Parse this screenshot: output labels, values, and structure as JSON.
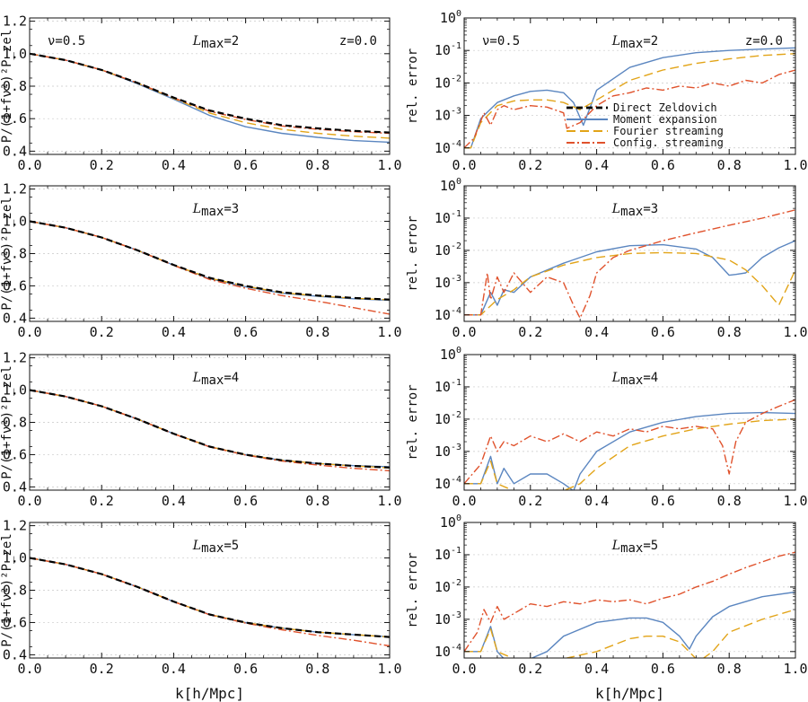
{
  "figure": {
    "xlabel": "k[h/Mpc]",
    "ylabel_left": "P/(1+fν²)²P_zel",
    "ylabel_right": "rel. error",
    "nu_label": "ν=0.5",
    "z_label": "z=0.0"
  },
  "colors": {
    "direct": "#000000",
    "moment": "#5b86c0",
    "fourier": "#e2a418",
    "config": "#e0522c"
  },
  "legend": [
    {
      "key": "direct",
      "label": "Direct Zeldovich",
      "dash": "7,4"
    },
    {
      "key": "moment",
      "label": "Moment expansion",
      "dash": ""
    },
    {
      "key": "fourier",
      "label": "Fourier streaming",
      "dash": "10,5"
    },
    {
      "key": "config",
      "label": "Config. streaming",
      "dash": "9,3,2,3"
    }
  ],
  "chart_data": [
    {
      "type": "line",
      "panel": "ratio",
      "lmax_label": "2",
      "xlim": [
        0,
        1
      ],
      "ylim": [
        0.38,
        1.22
      ],
      "xticks": [
        0.0,
        0.2,
        0.4,
        0.6,
        0.8,
        1.0
      ],
      "yticks": [
        0.4,
        0.6,
        0.8,
        1.0,
        1.2
      ],
      "x": [
        0.0,
        0.1,
        0.2,
        0.3,
        0.4,
        0.5,
        0.6,
        0.7,
        0.8,
        0.9,
        1.0
      ],
      "series": [
        {
          "key": "direct",
          "values": [
            1.0,
            0.96,
            0.9,
            0.82,
            0.73,
            0.65,
            0.6,
            0.56,
            0.54,
            0.525,
            0.515
          ]
        },
        {
          "key": "moment",
          "values": [
            1.0,
            0.96,
            0.9,
            0.815,
            0.72,
            0.62,
            0.55,
            0.51,
            0.485,
            0.465,
            0.455
          ]
        },
        {
          "key": "fourier",
          "values": [
            1.0,
            0.96,
            0.9,
            0.818,
            0.725,
            0.635,
            0.575,
            0.535,
            0.51,
            0.492,
            0.48
          ]
        },
        {
          "key": "config",
          "values": [
            1.0,
            0.96,
            0.9,
            0.82,
            0.728,
            0.645,
            0.595,
            0.555,
            0.535,
            0.52,
            0.51
          ]
        }
      ]
    },
    {
      "type": "line",
      "panel": "error",
      "lmax_label": "2",
      "yscale": "log",
      "xlim": [
        0,
        1
      ],
      "ylim_exp": [
        -4.2,
        0
      ],
      "xticks": [
        0.0,
        0.2,
        0.4,
        0.6,
        0.8,
        1.0
      ],
      "ytick_exps": [
        -4,
        -3,
        -2,
        -1,
        0
      ],
      "series": [
        {
          "key": "moment",
          "x": [
            0.0,
            0.02,
            0.05,
            0.1,
            0.15,
            0.2,
            0.25,
            0.3,
            0.33,
            0.36,
            0.4,
            0.5,
            0.6,
            0.7,
            0.8,
            0.9,
            1.0
          ],
          "values": [
            0.0001,
            0.0001,
            0.0008,
            0.0025,
            0.004,
            0.0055,
            0.006,
            0.005,
            0.0025,
            0.0005,
            0.006,
            0.03,
            0.06,
            0.085,
            0.1,
            0.11,
            0.12
          ]
        },
        {
          "key": "fourier",
          "x": [
            0.0,
            0.02,
            0.05,
            0.1,
            0.15,
            0.2,
            0.25,
            0.3,
            0.35,
            0.4,
            0.5,
            0.6,
            0.7,
            0.8,
            0.9,
            1.0
          ],
          "values": [
            0.0001,
            0.0001,
            0.0006,
            0.002,
            0.0028,
            0.003,
            0.003,
            0.0025,
            0.0015,
            0.003,
            0.012,
            0.025,
            0.04,
            0.055,
            0.07,
            0.08
          ]
        },
        {
          "key": "config",
          "x": [
            0.0,
            0.03,
            0.06,
            0.08,
            0.1,
            0.12,
            0.15,
            0.2,
            0.25,
            0.3,
            0.31,
            0.35,
            0.4,
            0.45,
            0.5,
            0.55,
            0.6,
            0.65,
            0.7,
            0.75,
            0.8,
            0.85,
            0.9,
            0.95,
            1.0
          ],
          "values": [
            0.0001,
            0.0002,
            0.0012,
            0.0005,
            0.0015,
            0.002,
            0.0015,
            0.002,
            0.0018,
            0.0012,
            0.0004,
            0.0006,
            0.002,
            0.004,
            0.005,
            0.007,
            0.006,
            0.008,
            0.007,
            0.01,
            0.008,
            0.012,
            0.01,
            0.018,
            0.025
          ]
        },
        {
          "key": "direct",
          "x": [
            0.31,
            0.42
          ],
          "values": [
            0.0028,
            0.0028
          ],
          "legend_only": true
        }
      ]
    },
    {
      "type": "line",
      "panel": "ratio",
      "lmax_label": "3",
      "xlim": [
        0,
        1
      ],
      "ylim": [
        0.38,
        1.22
      ],
      "xticks": [
        0.0,
        0.2,
        0.4,
        0.6,
        0.8,
        1.0
      ],
      "yticks": [
        0.4,
        0.6,
        0.8,
        1.0,
        1.2
      ],
      "x": [
        0.0,
        0.1,
        0.2,
        0.3,
        0.4,
        0.5,
        0.6,
        0.7,
        0.8,
        0.9,
        1.0
      ],
      "series": [
        {
          "key": "direct",
          "values": [
            1.0,
            0.96,
            0.9,
            0.82,
            0.73,
            0.65,
            0.6,
            0.56,
            0.54,
            0.525,
            0.515
          ]
        },
        {
          "key": "moment",
          "values": [
            1.0,
            0.96,
            0.9,
            0.82,
            0.728,
            0.645,
            0.595,
            0.555,
            0.535,
            0.52,
            0.51
          ]
        },
        {
          "key": "fourier",
          "values": [
            1.0,
            0.96,
            0.9,
            0.82,
            0.729,
            0.648,
            0.598,
            0.558,
            0.538,
            0.523,
            0.513
          ]
        },
        {
          "key": "config",
          "values": [
            1.0,
            0.96,
            0.9,
            0.82,
            0.727,
            0.64,
            0.585,
            0.54,
            0.505,
            0.465,
            0.425
          ]
        }
      ]
    },
    {
      "type": "line",
      "panel": "error",
      "lmax_label": "3",
      "yscale": "log",
      "xlim": [
        0,
        1
      ],
      "ylim_exp": [
        -4.2,
        0
      ],
      "xticks": [
        0.0,
        0.2,
        0.4,
        0.6,
        0.8,
        1.0
      ],
      "ytick_exps": [
        -4,
        -3,
        -2,
        -1,
        0
      ],
      "series": [
        {
          "key": "moment",
          "x": [
            0.0,
            0.05,
            0.08,
            0.1,
            0.12,
            0.15,
            0.2,
            0.3,
            0.4,
            0.5,
            0.6,
            0.7,
            0.75,
            0.8,
            0.82,
            0.85,
            0.9,
            0.95,
            1.0
          ],
          "values": [
            0.0001,
            0.0001,
            0.0005,
            0.0002,
            0.0006,
            0.0005,
            0.0015,
            0.004,
            0.009,
            0.014,
            0.015,
            0.011,
            0.006,
            0.0017,
            0.0018,
            0.002,
            0.006,
            0.012,
            0.02
          ]
        },
        {
          "key": "fourier",
          "x": [
            0.0,
            0.05,
            0.1,
            0.15,
            0.2,
            0.3,
            0.4,
            0.5,
            0.6,
            0.7,
            0.8,
            0.85,
            0.9,
            0.95,
            1.0
          ],
          "values": [
            0.0001,
            0.0001,
            0.0003,
            0.0006,
            0.0015,
            0.0035,
            0.006,
            0.008,
            0.0085,
            0.008,
            0.005,
            0.0025,
            0.0008,
            0.0002,
            0.0025
          ]
        },
        {
          "key": "config",
          "x": [
            0.0,
            0.05,
            0.07,
            0.08,
            0.1,
            0.12,
            0.15,
            0.2,
            0.25,
            0.3,
            0.33,
            0.35,
            0.38,
            0.4,
            0.45,
            0.5,
            0.6,
            0.7,
            0.8,
            0.9,
            1.0
          ],
          "values": [
            0.0001,
            0.0001,
            0.002,
            0.0003,
            0.0015,
            0.0005,
            0.002,
            0.0005,
            0.0015,
            0.001,
            0.0002,
            8e-05,
            0.0004,
            0.002,
            0.006,
            0.01,
            0.02,
            0.035,
            0.06,
            0.1,
            0.18
          ]
        }
      ]
    },
    {
      "type": "line",
      "panel": "ratio",
      "lmax_label": "4",
      "xlim": [
        0,
        1
      ],
      "ylim": [
        0.38,
        1.22
      ],
      "xticks": [
        0.0,
        0.2,
        0.4,
        0.6,
        0.8,
        1.0
      ],
      "yticks": [
        0.4,
        0.6,
        0.8,
        1.0,
        1.2
      ],
      "x": [
        0.0,
        0.1,
        0.2,
        0.3,
        0.4,
        0.5,
        0.6,
        0.7,
        0.8,
        0.9,
        1.0
      ],
      "series": [
        {
          "key": "direct",
          "values": [
            1.0,
            0.96,
            0.9,
            0.82,
            0.73,
            0.65,
            0.6,
            0.565,
            0.545,
            0.53,
            0.52
          ]
        },
        {
          "key": "moment",
          "values": [
            1.0,
            0.96,
            0.9,
            0.82,
            0.73,
            0.65,
            0.6,
            0.565,
            0.545,
            0.532,
            0.525
          ]
        },
        {
          "key": "fourier",
          "values": [
            1.0,
            0.96,
            0.9,
            0.82,
            0.73,
            0.65,
            0.6,
            0.565,
            0.545,
            0.53,
            0.518
          ]
        },
        {
          "key": "config",
          "values": [
            1.0,
            0.96,
            0.9,
            0.82,
            0.729,
            0.648,
            0.597,
            0.56,
            0.535,
            0.515,
            0.5
          ]
        }
      ]
    },
    {
      "type": "line",
      "panel": "error",
      "lmax_label": "4",
      "yscale": "log",
      "xlim": [
        0,
        1
      ],
      "ylim_exp": [
        -4.2,
        0
      ],
      "xticks": [
        0.0,
        0.2,
        0.4,
        0.6,
        0.8,
        1.0
      ],
      "ytick_exps": [
        -4,
        -3,
        -2,
        -1,
        0
      ],
      "series": [
        {
          "key": "moment",
          "x": [
            0.0,
            0.05,
            0.08,
            0.1,
            0.12,
            0.15,
            0.2,
            0.25,
            0.3,
            0.33,
            0.35,
            0.4,
            0.5,
            0.6,
            0.7,
            0.8,
            0.9,
            1.0
          ],
          "values": [
            0.0001,
            0.0001,
            0.0007,
            0.0001,
            0.0003,
            0.0001,
            0.0002,
            0.0002,
            0.0001,
            6e-05,
            0.0002,
            0.001,
            0.004,
            0.008,
            0.012,
            0.015,
            0.016,
            0.015
          ]
        },
        {
          "key": "fourier",
          "x": [
            0.0,
            0.05,
            0.08,
            0.1,
            0.15,
            0.25,
            0.3,
            0.35,
            0.4,
            0.5,
            0.6,
            0.7,
            0.8,
            0.9,
            1.0
          ],
          "values": [
            0.0001,
            0.0001,
            0.0005,
            0.0001,
            6e-05,
            6e-05,
            6e-05,
            0.0001,
            0.0003,
            0.0015,
            0.003,
            0.005,
            0.007,
            0.009,
            0.01
          ]
        },
        {
          "key": "config",
          "x": [
            0.0,
            0.05,
            0.08,
            0.1,
            0.12,
            0.15,
            0.2,
            0.25,
            0.3,
            0.35,
            0.4,
            0.45,
            0.5,
            0.55,
            0.6,
            0.65,
            0.7,
            0.75,
            0.78,
            0.8,
            0.82,
            0.85,
            0.9,
            0.95,
            1.0
          ],
          "values": [
            0.0001,
            0.0004,
            0.003,
            0.001,
            0.002,
            0.0015,
            0.003,
            0.002,
            0.0035,
            0.002,
            0.004,
            0.003,
            0.005,
            0.004,
            0.006,
            0.005,
            0.006,
            0.005,
            0.0015,
            0.0002,
            0.002,
            0.008,
            0.015,
            0.025,
            0.04
          ]
        }
      ]
    },
    {
      "type": "line",
      "panel": "ratio",
      "lmax_label": "5",
      "xlim": [
        0,
        1
      ],
      "ylim": [
        0.38,
        1.22
      ],
      "xticks": [
        0.0,
        0.2,
        0.4,
        0.6,
        0.8,
        1.0
      ],
      "yticks": [
        0.4,
        0.6,
        0.8,
        1.0,
        1.2
      ],
      "x": [
        0.0,
        0.1,
        0.2,
        0.3,
        0.4,
        0.5,
        0.6,
        0.7,
        0.8,
        0.9,
        1.0
      ],
      "series": [
        {
          "key": "direct",
          "values": [
            1.0,
            0.96,
            0.9,
            0.82,
            0.73,
            0.65,
            0.6,
            0.565,
            0.54,
            0.525,
            0.51
          ]
        },
        {
          "key": "moment",
          "values": [
            1.0,
            0.96,
            0.9,
            0.82,
            0.73,
            0.65,
            0.6,
            0.565,
            0.54,
            0.524,
            0.512
          ]
        },
        {
          "key": "fourier",
          "values": [
            1.0,
            0.96,
            0.9,
            0.82,
            0.73,
            0.65,
            0.6,
            0.565,
            0.54,
            0.525,
            0.51
          ]
        },
        {
          "key": "config",
          "values": [
            1.0,
            0.96,
            0.9,
            0.82,
            0.729,
            0.648,
            0.596,
            0.555,
            0.52,
            0.49,
            0.455
          ]
        }
      ]
    },
    {
      "type": "line",
      "panel": "error",
      "lmax_label": "5",
      "yscale": "log",
      "xlim": [
        0,
        1
      ],
      "ylim_exp": [
        -4.2,
        0
      ],
      "xticks": [
        0.0,
        0.2,
        0.4,
        0.6,
        0.8,
        1.0
      ],
      "ytick_exps": [
        -4,
        -3,
        -2,
        -1,
        0
      ],
      "series": [
        {
          "key": "moment",
          "x": [
            0.0,
            0.05,
            0.08,
            0.1,
            0.12,
            0.2,
            0.25,
            0.3,
            0.4,
            0.5,
            0.55,
            0.6,
            0.65,
            0.68,
            0.7,
            0.75,
            0.8,
            0.9,
            1.0
          ],
          "values": [
            0.0001,
            0.0001,
            0.0006,
            0.0001,
            6e-05,
            6e-05,
            0.0001,
            0.0003,
            0.0008,
            0.0011,
            0.0011,
            0.0008,
            0.0003,
            0.00012,
            0.0003,
            0.0012,
            0.0025,
            0.005,
            0.007
          ]
        },
        {
          "key": "fourier",
          "x": [
            0.0,
            0.05,
            0.08,
            0.1,
            0.15,
            0.3,
            0.4,
            0.5,
            0.55,
            0.6,
            0.65,
            0.7,
            0.72,
            0.75,
            0.8,
            0.9,
            1.0
          ],
          "values": [
            0.0001,
            0.0001,
            0.0005,
            0.0001,
            6e-05,
            6e-05,
            0.0001,
            0.00025,
            0.0003,
            0.0003,
            0.0002,
            6e-05,
            6e-05,
            0.0001,
            0.0004,
            0.001,
            0.002
          ]
        },
        {
          "key": "config",
          "x": [
            0.0,
            0.04,
            0.06,
            0.08,
            0.1,
            0.12,
            0.15,
            0.2,
            0.25,
            0.3,
            0.35,
            0.4,
            0.45,
            0.5,
            0.55,
            0.6,
            0.65,
            0.7,
            0.75,
            0.8,
            0.85,
            0.9,
            0.95,
            1.0
          ],
          "values": [
            0.0001,
            0.0004,
            0.002,
            0.0008,
            0.0025,
            0.001,
            0.0015,
            0.003,
            0.0025,
            0.0035,
            0.003,
            0.004,
            0.0035,
            0.004,
            0.003,
            0.0045,
            0.006,
            0.01,
            0.015,
            0.025,
            0.04,
            0.06,
            0.09,
            0.12
          ]
        }
      ]
    }
  ]
}
